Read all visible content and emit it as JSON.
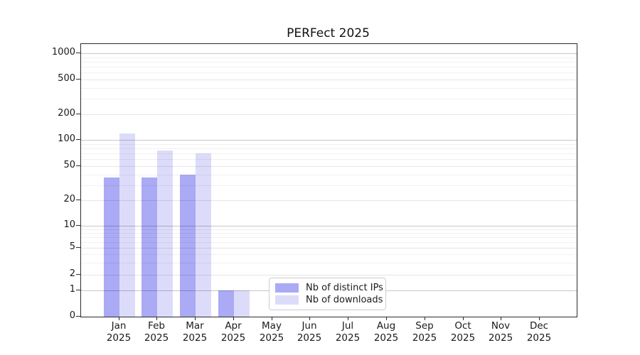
{
  "title": "PERFect 2025",
  "chart_data": {
    "type": "bar",
    "title": "PERFect 2025",
    "categories": [
      "Jan 2025",
      "Feb 2025",
      "Mar 2025",
      "Apr 2025",
      "May 2025",
      "Jun 2025",
      "Jul 2025",
      "Aug 2025",
      "Sep 2025",
      "Oct 2025",
      "Nov 2025",
      "Dec 2025"
    ],
    "series": [
      {
        "name": "Nb of distinct IPs",
        "color": "#aaaaf5",
        "values": [
          37,
          37,
          40,
          1,
          0,
          0,
          0,
          0,
          0,
          0,
          0,
          0
        ]
      },
      {
        "name": "Nb of downloads",
        "color": "#dcdcfa",
        "values": [
          120,
          75,
          70,
          1,
          0,
          0,
          0,
          0,
          0,
          0,
          0,
          0
        ]
      }
    ],
    "xlabel": "",
    "ylabel": "",
    "yscale": "symlog",
    "yticks": [
      0,
      1,
      2,
      5,
      10,
      20,
      50,
      100,
      200,
      500,
      1000
    ],
    "ylim": [
      0,
      1300
    ],
    "grid": true,
    "legend_position": "lower center"
  }
}
